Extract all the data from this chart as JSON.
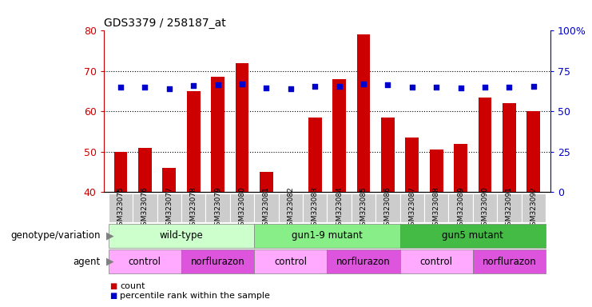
{
  "title": "GDS3379 / 258187_at",
  "samples": [
    "GSM323075",
    "GSM323076",
    "GSM323077",
    "GSM323078",
    "GSM323079",
    "GSM323080",
    "GSM323081",
    "GSM323082",
    "GSM323083",
    "GSM323084",
    "GSM323085",
    "GSM323086",
    "GSM323087",
    "GSM323088",
    "GSM323089",
    "GSM323090",
    "GSM323091",
    "GSM323092"
  ],
  "counts": [
    50,
    51,
    46,
    65,
    68.5,
    72,
    45,
    40,
    58.5,
    68,
    79,
    58.5,
    53.5,
    50.5,
    52,
    63.5,
    62,
    60
  ],
  "percentile_ranks": [
    65,
    65,
    64,
    66,
    66.5,
    67,
    64.5,
    64,
    65.5,
    65.5,
    67,
    66.5,
    65,
    65,
    64.5,
    65,
    65,
    65.5
  ],
  "bar_bottom": 40,
  "ylim_left": [
    40,
    80
  ],
  "ylim_right": [
    0,
    100
  ],
  "yticks_left": [
    40,
    50,
    60,
    70,
    80
  ],
  "ytick_labels_right": [
    "0",
    "25",
    "50",
    "75",
    "100%"
  ],
  "yticks_right": [
    0,
    25,
    50,
    75,
    100
  ],
  "bar_color": "#cc0000",
  "dot_color": "#0000cc",
  "genotype_groups": [
    {
      "label": "wild-type",
      "start": 0,
      "end": 5,
      "color": "#ccffcc"
    },
    {
      "label": "gun1-9 mutant",
      "start": 6,
      "end": 11,
      "color": "#88ee88"
    },
    {
      "label": "gun5 mutant",
      "start": 12,
      "end": 17,
      "color": "#44bb44"
    }
  ],
  "agent_groups": [
    {
      "label": "control",
      "start": 0,
      "end": 2,
      "color": "#ffaaff"
    },
    {
      "label": "norflurazon",
      "start": 3,
      "end": 5,
      "color": "#dd55dd"
    },
    {
      "label": "control",
      "start": 6,
      "end": 8,
      "color": "#ffaaff"
    },
    {
      "label": "norflurazon",
      "start": 9,
      "end": 11,
      "color": "#dd55dd"
    },
    {
      "label": "control",
      "start": 12,
      "end": 14,
      "color": "#ffaaff"
    },
    {
      "label": "norflurazon",
      "start": 15,
      "end": 17,
      "color": "#dd55dd"
    }
  ],
  "legend_items": [
    {
      "label": "count",
      "color": "#cc0000"
    },
    {
      "label": "percentile rank within the sample",
      "color": "#0000cc"
    }
  ],
  "genotype_label": "genotype/variation",
  "agent_label": "agent",
  "left_ycolor": "#cc0000",
  "right_ycolor": "#0000cc",
  "xtick_bg": "#cccccc"
}
